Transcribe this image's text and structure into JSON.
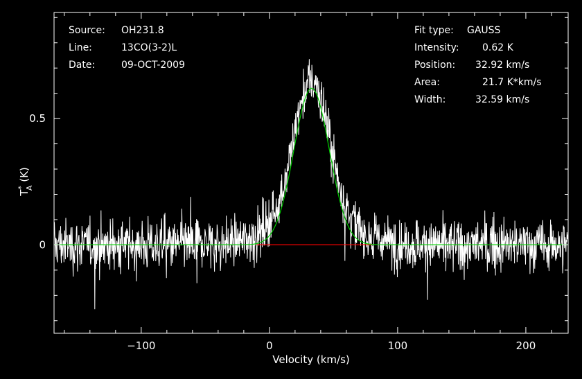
{
  "header_left": {
    "source_label": "Source:",
    "source_value": "OH231.8",
    "line_label": "Line:",
    "line_value": "13CO(3-2)L",
    "date_label": "Date:",
    "date_value": "09-OCT-2009"
  },
  "header_right": {
    "fit_type_label": "Fit type:",
    "fit_type_value": "GAUSS",
    "intensity_label": "Intensity:",
    "intensity_value": "0.62 K",
    "position_label": "Position:",
    "position_value": "32.92 km/s",
    "area_label": "Area:",
    "area_value": "21.7 K*km/s",
    "width_label": "Width:",
    "width_value": "32.59 km/s"
  },
  "chart_data": {
    "type": "line",
    "xlabel": "Velocity (km/s)",
    "ylabel": "T",
    "ylabel_sup": "*",
    "ylabel_sub": "A",
    "ylabel_unit": "(K)",
    "xlim": [
      -168,
      233
    ],
    "ylim": [
      -0.35,
      0.92
    ],
    "x_ticks": [
      -100,
      0,
      100,
      200
    ],
    "x_tick_labels": [
      "−100",
      "0",
      "100",
      "200"
    ],
    "y_ticks": [
      0,
      0.5
    ],
    "y_tick_labels": [
      "0",
      "0.5"
    ],
    "grid": false,
    "spectrum": {
      "color": "#ffffff",
      "noise_rms_K": 0.07,
      "x_range": [
        -168,
        233
      ]
    },
    "gaussian_fit": {
      "color": "#00d000",
      "amplitude_K": 0.62,
      "center_kms": 32.92,
      "fwhm_kms": 32.59
    },
    "fit_window": {
      "color": "#ff0000",
      "x_range": [
        -10,
        80
      ],
      "y": 0
    }
  }
}
